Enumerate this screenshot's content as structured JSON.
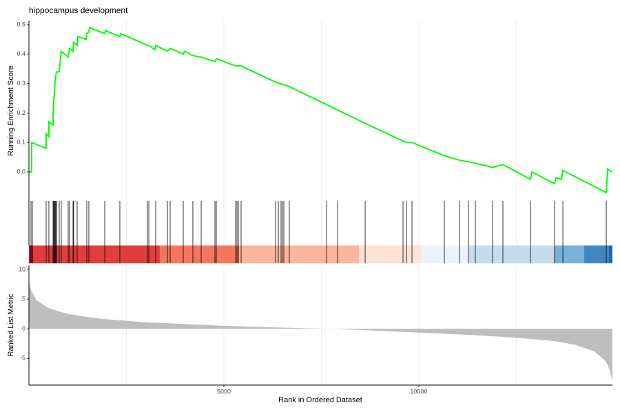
{
  "chart_data": [
    {
      "type": "line",
      "title": "hippocampus development",
      "ylabel": "Running Enrichment Score",
      "color": "#00ff00",
      "x": [
        0,
        70,
        71,
        442,
        443,
        512,
        513,
        618,
        619,
        671,
        707,
        777,
        830,
        1007,
        1042,
        1131,
        1148,
        1237,
        1255,
        1467,
        1484,
        1537,
        1555,
        1944,
        1961,
        2332,
        2350,
        3039,
        3075,
        3234,
        3251,
        3552,
        3622,
        3958,
        3993,
        4205,
        4418,
        4771,
        4806,
        5301,
        5442,
        6326,
        6679,
        8623,
        9595,
        9683,
        9825,
        10655,
        11044,
        11450,
        11892,
        12157,
        12864,
        12900,
        13482,
        13518,
        13659,
        13695,
        14808,
        14843,
        14949
      ],
      "values": [
        0,
        0,
        0.1,
        0.08,
        0.13,
        0.12,
        0.17,
        0.16,
        0.2,
        0.31,
        0.34,
        0.34,
        0.41,
        0.39,
        0.42,
        0.41,
        0.44,
        0.43,
        0.46,
        0.45,
        0.47,
        0.475,
        0.49,
        0.47,
        0.48,
        0.46,
        0.47,
        0.43,
        0.43,
        0.415,
        0.43,
        0.41,
        0.42,
        0.4,
        0.41,
        0.395,
        0.39,
        0.375,
        0.385,
        0.36,
        0.36,
        0.305,
        0.29,
        0.165,
        0.105,
        0.1,
        0.1,
        0.055,
        0.04,
        0.03,
        0.015,
        0.025,
        -0.025,
        0,
        -0.04,
        -0.02,
        -0.025,
        0.005,
        -0.07,
        0.01,
        0
      ],
      "xlim": [
        0,
        14966
      ],
      "ylim": [
        -0.098,
        0.514
      ],
      "yticks": [
        {
          "value": 0,
          "label": "0.0"
        },
        0.1,
        0.2,
        0.3,
        0.4,
        0.5
      ],
      "grid_x": [
        2500,
        5000,
        7500,
        10000,
        12500
      ]
    },
    {
      "type": "rug",
      "xlim": [
        0,
        14966
      ],
      "color": "#000000",
      "hits": [
        53,
        88,
        442,
        512,
        618,
        636,
        654,
        671,
        689,
        707,
        777,
        830,
        1007,
        1042,
        1131,
        1148,
        1237,
        1484,
        1537,
        1944,
        2332,
        3039,
        3075,
        3251,
        3552,
        3622,
        3958,
        4205,
        4418,
        4771,
        4806,
        5301,
        5336,
        5372,
        5442,
        6326,
        6397,
        6467,
        6503,
        6538,
        6679,
        7633,
        7916,
        8623,
        9595,
        9683,
        9825,
        10655,
        11044,
        11273,
        11450,
        11892,
        12157,
        12864,
        13482,
        13695,
        14808
      ],
      "band_edges": [
        0,
        106,
        3357,
        5389,
        8464,
        10054,
        11291,
        13482,
        14242,
        14878,
        14966
      ],
      "band_colors": [
        "#b2182b",
        "#e03d3d",
        "#f4765c",
        "#fbb59c",
        "#fde2d6",
        "#eef2fb",
        "#c5dcea",
        "#76b3d8",
        "#3f87c2",
        "#2166ac"
      ],
      "grid_x": [
        2500,
        5000,
        7500,
        10000,
        12500
      ]
    },
    {
      "type": "area",
      "ylabel": "Ranked List Metric",
      "xlabel": "Rank in Ordered Dataset",
      "color": "#bebebe",
      "x": [
        0,
        50,
        200,
        500,
        1000,
        1500,
        2000,
        3000,
        4000,
        5000,
        6000,
        7000,
        7700,
        8500,
        9500,
        10500,
        11500,
        12500,
        13500,
        14000,
        14500,
        14800,
        14900,
        14966
      ],
      "values": [
        8,
        6.5,
        4.8,
        3.5,
        2.5,
        2,
        1.6,
        1.1,
        0.8,
        0.5,
        0.3,
        0.1,
        0,
        -0.2,
        -0.5,
        -0.8,
        -1.1,
        -1.5,
        -2.1,
        -2.7,
        -3.8,
        -5.5,
        -7,
        -9
      ],
      "xlim": [
        0,
        14966
      ],
      "ylim": [
        -9.5,
        10.7
      ],
      "xticks": [
        5000,
        10000
      ],
      "yticks": [
        -5,
        0,
        5,
        10
      ],
      "grid_x": [
        2500,
        5000,
        7500,
        10000,
        12500
      ]
    }
  ]
}
